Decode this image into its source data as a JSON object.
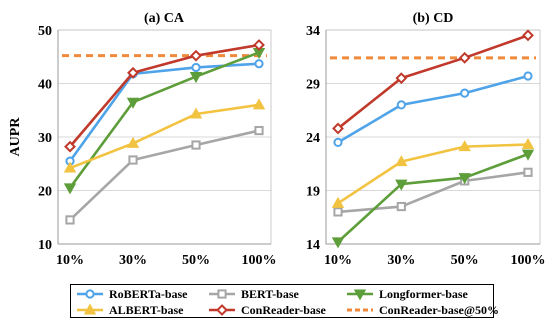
{
  "y_axis_label": "AUPR",
  "colors": {
    "RoBERTa-base": "#4fa3e8",
    "BERT-base": "#a6a6a6",
    "Longformer-base": "#5e9e3a",
    "ALBERT-base": "#f2c340",
    "ConReader-base": "#c0392b",
    "ConReader-base@50%": "#ef8a3c"
  },
  "legend": [
    {
      "name": "RoBERTa-base",
      "marker": "circle",
      "style": "solid"
    },
    {
      "name": "BERT-base",
      "marker": "square",
      "style": "solid"
    },
    {
      "name": "Longformer-base",
      "marker": "triangle-down",
      "style": "solid"
    },
    {
      "name": "ALBERT-base",
      "marker": "triangle-up",
      "style": "solid"
    },
    {
      "name": "ConReader-base",
      "marker": "diamond",
      "style": "solid"
    },
    {
      "name": "ConReader-base@50%",
      "marker": "none",
      "style": "dashed"
    }
  ],
  "chart_data": [
    {
      "type": "line",
      "title": "(a) CA",
      "ylabel": "AUPR",
      "categories": [
        "10%",
        "30%",
        "50%",
        "100%"
      ],
      "ylim": [
        10,
        50
      ],
      "yticks": [
        10,
        20,
        30,
        40,
        50
      ],
      "grid": true,
      "series": [
        {
          "name": "RoBERTa-base",
          "values": [
            25.5,
            41.8,
            43.0,
            43.7
          ]
        },
        {
          "name": "BERT-base",
          "values": [
            14.5,
            25.7,
            28.5,
            31.2
          ]
        },
        {
          "name": "Longformer-base",
          "values": [
            20.5,
            36.5,
            41.3,
            45.8
          ]
        },
        {
          "name": "ALBERT-base",
          "values": [
            24.2,
            28.8,
            34.3,
            36.0
          ]
        },
        {
          "name": "ConReader-base",
          "values": [
            28.2,
            42.0,
            45.2,
            47.2
          ]
        }
      ],
      "reference_line": {
        "name": "ConReader-base@50%",
        "value": 45.2
      }
    },
    {
      "type": "line",
      "title": "(b) CD",
      "ylabel": "",
      "categories": [
        "10%",
        "30%",
        "50%",
        "100%"
      ],
      "ylim": [
        14,
        34
      ],
      "yticks": [
        14,
        19,
        24,
        29,
        34
      ],
      "grid": true,
      "series": [
        {
          "name": "RoBERTa-base",
          "values": [
            23.5,
            27.0,
            28.1,
            29.7
          ]
        },
        {
          "name": "BERT-base",
          "values": [
            17.0,
            17.5,
            19.9,
            20.7
          ]
        },
        {
          "name": "Longformer-base",
          "values": [
            14.2,
            19.6,
            20.2,
            22.4
          ]
        },
        {
          "name": "ALBERT-base",
          "values": [
            17.8,
            21.7,
            23.1,
            23.3
          ]
        },
        {
          "name": "ConReader-base",
          "values": [
            24.8,
            29.5,
            31.4,
            33.5
          ]
        }
      ],
      "reference_line": {
        "name": "ConReader-base@50%",
        "value": 31.4
      }
    }
  ]
}
